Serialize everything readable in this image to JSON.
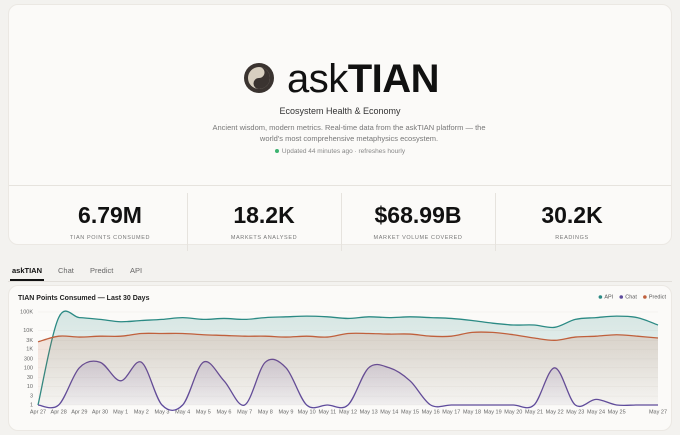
{
  "header": {
    "brand_prefix": "ask",
    "brand_name": "TIAN",
    "subtitle": "Ecosystem Health & Economy",
    "description": "Ancient wisdom, modern metrics. Real-time data from the askTIAN platform — the world's most comprehensive metaphysics ecosystem.",
    "updated": "Updated 44 minutes ago · refreshes hourly"
  },
  "stats": [
    {
      "value": "6.79M",
      "label": "TIAN POINTS CONSUMED"
    },
    {
      "value": "18.2K",
      "label": "MARKETS ANALYSED"
    },
    {
      "value": "$68.99B",
      "label": "MARKET VOLUME COVERED"
    },
    {
      "value": "30.2K",
      "label": "READINGS"
    }
  ],
  "tabs": [
    "askTIAN",
    "Chat",
    "Predict",
    "API"
  ],
  "chart_data": {
    "type": "line",
    "title": "TIAN Points Consumed — Last 30 Days",
    "categories": [
      "Apr 27",
      "Apr 28",
      "Apr 29",
      "Apr 30",
      "May 1",
      "May 2",
      "May 3",
      "May 4",
      "May 5",
      "May 6",
      "May 7",
      "May 8",
      "May 9",
      "May 10",
      "May 11",
      "May 12",
      "May 13",
      "May 14",
      "May 15",
      "May 16",
      "May 17",
      "May 18",
      "May 19",
      "May 20",
      "May 21",
      "May 22",
      "May 23",
      "May 24",
      "May 25",
      null,
      "May 27"
    ],
    "series": [
      {
        "name": "API",
        "color": "#2b8a84",
        "values": [
          1,
          50000,
          50000,
          40000,
          30000,
          35000,
          40000,
          50000,
          40000,
          45000,
          40000,
          50000,
          55000,
          60000,
          55000,
          45000,
          55000,
          50000,
          55000,
          50000,
          45000,
          35000,
          25000,
          20000,
          20000,
          15000,
          40000,
          50000,
          60000,
          50000,
          20000
        ]
      },
      {
        "name": "Chat",
        "color": "#5e4b9c",
        "values": [
          1,
          1,
          100,
          200,
          20,
          200,
          1,
          1,
          200,
          20,
          1,
          200,
          100,
          1,
          1,
          1,
          100,
          100,
          20,
          1,
          1,
          1,
          1,
          1,
          1,
          100,
          1,
          2,
          1,
          1,
          1
        ]
      },
      {
        "name": "Predict",
        "color": "#c0603c",
        "values": [
          2500,
          5000,
          4500,
          5000,
          5000,
          7000,
          7000,
          7000,
          6000,
          5500,
          5000,
          5000,
          4500,
          5000,
          4500,
          7000,
          7000,
          6500,
          6500,
          5000,
          5000,
          8000,
          8000,
          6000,
          4000,
          3000,
          4500,
          5000,
          6000,
          5000,
          4000
        ]
      }
    ],
    "log_scale": true,
    "ylim": [
      1,
      100000
    ],
    "yticks": [
      {
        "value": 100000,
        "label": "100K"
      },
      {
        "value": 10000,
        "label": "10K"
      },
      {
        "value": 3000,
        "label": "3K"
      },
      {
        "value": 1000,
        "label": "1K"
      },
      300,
      100,
      30,
      10,
      3,
      1
    ],
    "legend": "top-right"
  }
}
